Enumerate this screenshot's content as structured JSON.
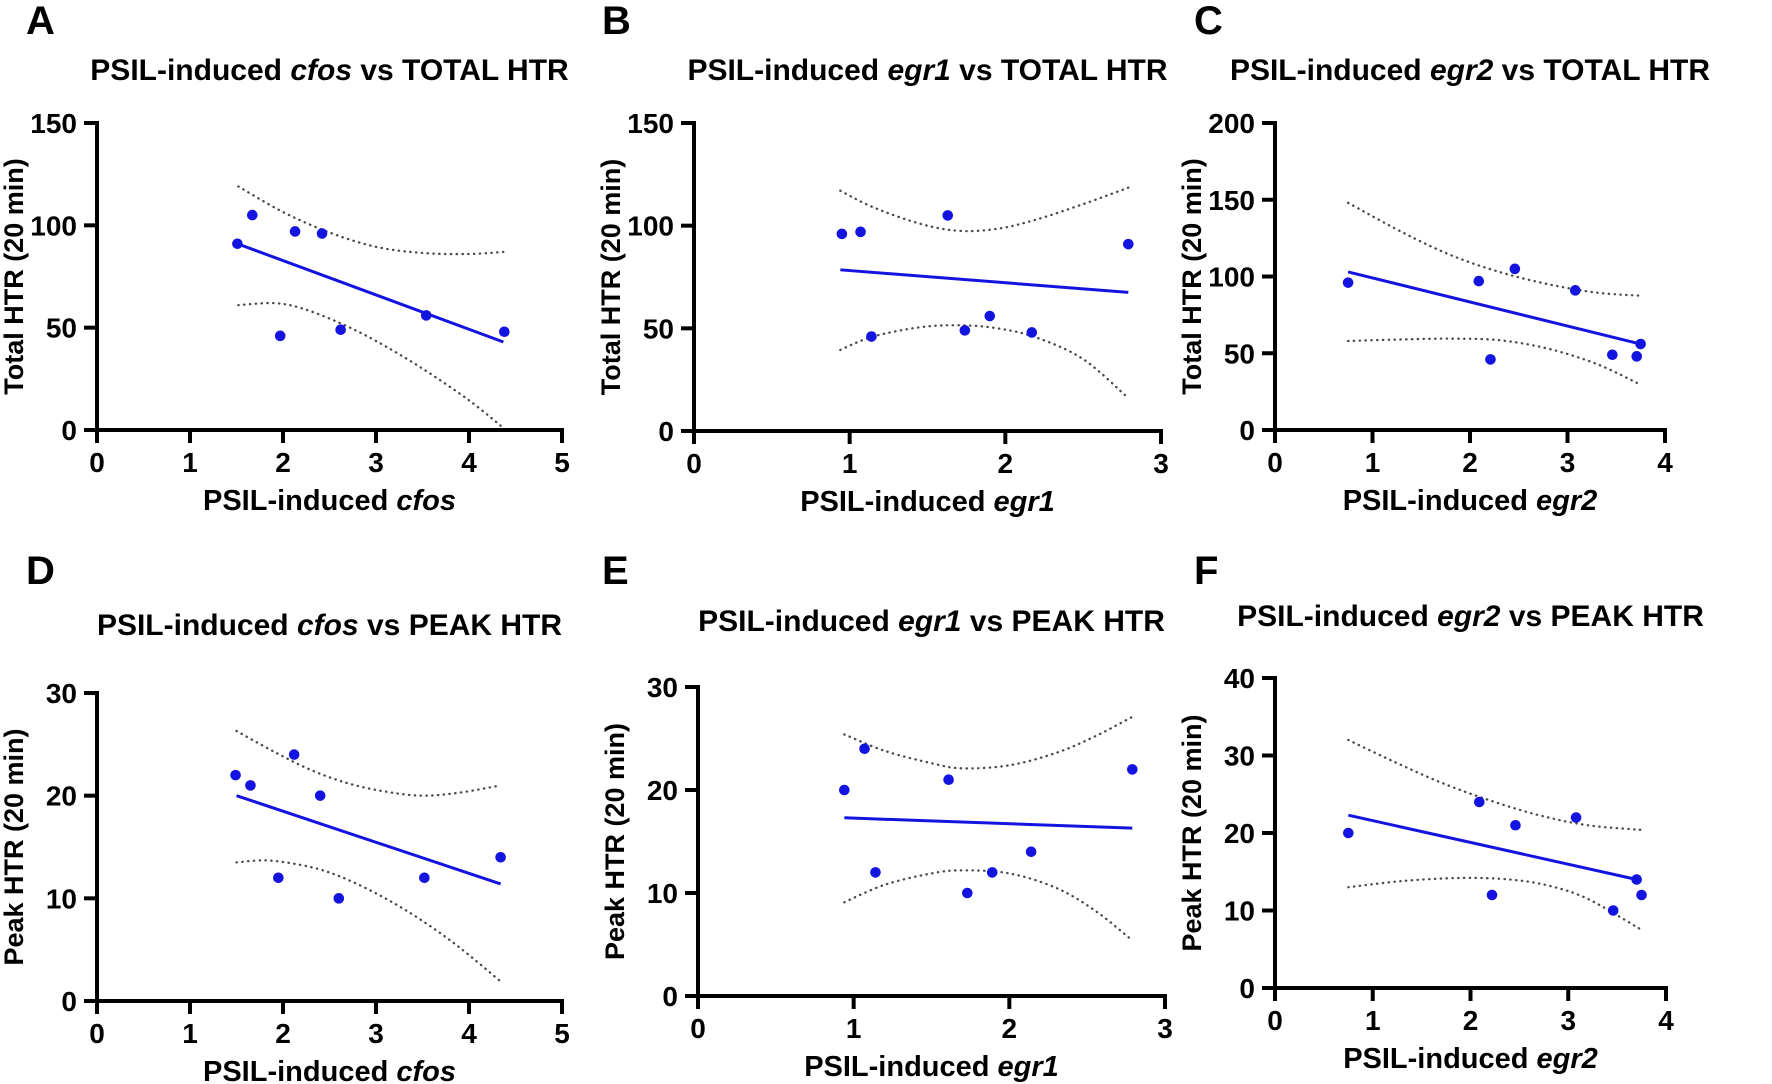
{
  "figure": {
    "background": "#ffffff",
    "point_color": "#1414e0",
    "line_color": "#1414e0",
    "ci_color": "#4a4a4a",
    "axis_color": "#000000",
    "text_color": "#000000"
  },
  "chart_data": [
    {
      "id": "A",
      "type": "scatter",
      "panel_label": "A",
      "title": {
        "prefix": "PSIL-induced ",
        "gene": "cfos",
        "suffix": " vs TOTAL HTR"
      },
      "xlabel": {
        "prefix": "PSIL-induced ",
        "gene": "cfos"
      },
      "ylabel": "Total HTR (20 min)",
      "xlim": [
        0,
        5
      ],
      "ylim": [
        0,
        150
      ],
      "xticks": [
        0,
        1,
        2,
        3,
        4,
        5
      ],
      "yticks": [
        0,
        50,
        100,
        150
      ],
      "grid": false,
      "points": [
        [
          1.67,
          105
        ],
        [
          2.13,
          97
        ],
        [
          2.42,
          96
        ],
        [
          1.51,
          91
        ],
        [
          1.97,
          46
        ],
        [
          2.62,
          49
        ],
        [
          3.54,
          56
        ],
        [
          4.38,
          48
        ]
      ],
      "regression": [
        [
          1.51,
          91
        ],
        [
          4.37,
          43
        ]
      ],
      "ci_upper": [
        [
          1.52,
          119
        ],
        [
          2.0,
          106.5
        ],
        [
          2.5,
          96.5
        ],
        [
          3.0,
          89.5
        ],
        [
          3.5,
          86.5
        ],
        [
          4.0,
          86
        ],
        [
          4.37,
          87
        ]
      ],
      "ci_lower": [
        [
          1.52,
          61
        ],
        [
          1.9,
          62
        ],
        [
          2.2,
          59.5
        ],
        [
          2.6,
          52.5
        ],
        [
          3.0,
          43.5
        ],
        [
          3.5,
          30
        ],
        [
          4.0,
          14.5
        ],
        [
          4.37,
          1
        ]
      ]
    },
    {
      "id": "B",
      "type": "scatter",
      "panel_label": "B",
      "title": {
        "prefix": "PSIL-induced ",
        "gene": "egr1",
        "suffix": " vs TOTAL HTR"
      },
      "xlabel": {
        "prefix": "PSIL-induced ",
        "gene": "egr1"
      },
      "ylabel": "Total HTR (20 min)",
      "xlim": [
        0,
        3
      ],
      "ylim": [
        0,
        150
      ],
      "xticks": [
        0,
        1,
        2,
        3
      ],
      "yticks": [
        0,
        50,
        100,
        150
      ],
      "grid": false,
      "points": [
        [
          0.95,
          96
        ],
        [
          1.07,
          97
        ],
        [
          1.63,
          105
        ],
        [
          2.79,
          91
        ],
        [
          1.14,
          46
        ],
        [
          1.74,
          49
        ],
        [
          1.9,
          56
        ],
        [
          2.17,
          48
        ]
      ],
      "regression": [
        [
          0.94,
          78.5
        ],
        [
          2.79,
          67.5
        ]
      ],
      "ci_upper": [
        [
          0.94,
          117
        ],
        [
          1.15,
          109
        ],
        [
          1.45,
          101
        ],
        [
          1.7,
          97.5
        ],
        [
          1.95,
          98.5
        ],
        [
          2.2,
          103
        ],
        [
          2.5,
          110.5
        ],
        [
          2.79,
          118.5
        ]
      ],
      "ci_lower": [
        [
          0.94,
          39.5
        ],
        [
          1.15,
          46
        ],
        [
          1.45,
          50.5
        ],
        [
          1.7,
          51.5
        ],
        [
          1.95,
          50
        ],
        [
          2.2,
          45.5
        ],
        [
          2.5,
          35
        ],
        [
          2.79,
          16
        ]
      ]
    },
    {
      "id": "C",
      "type": "scatter",
      "panel_label": "C",
      "title": {
        "prefix": "PSIL-induced ",
        "gene": "egr2",
        "suffix": " vs TOTAL HTR"
      },
      "xlabel": {
        "prefix": "PSIL-induced ",
        "gene": "egr2"
      },
      "ylabel": "Total HTR (20 min)",
      "xlim": [
        0,
        4
      ],
      "ylim": [
        0,
        200
      ],
      "xticks": [
        0,
        1,
        2,
        3,
        4
      ],
      "yticks": [
        0,
        50,
        100,
        150,
        200
      ],
      "grid": false,
      "points": [
        [
          0.75,
          96
        ],
        [
          2.09,
          97
        ],
        [
          2.46,
          105
        ],
        [
          3.08,
          91
        ],
        [
          2.21,
          46
        ],
        [
          3.46,
          49
        ],
        [
          3.71,
          48
        ],
        [
          3.75,
          56
        ]
      ],
      "regression": [
        [
          0.75,
          103
        ],
        [
          3.75,
          56
        ]
      ],
      "ci_upper": [
        [
          0.75,
          148
        ],
        [
          1.3,
          129
        ],
        [
          1.8,
          114
        ],
        [
          2.3,
          103
        ],
        [
          2.8,
          95
        ],
        [
          3.3,
          89.5
        ],
        [
          3.75,
          87.5
        ]
      ],
      "ci_lower": [
        [
          0.75,
          58
        ],
        [
          1.3,
          59
        ],
        [
          1.8,
          59.5
        ],
        [
          2.3,
          58.5
        ],
        [
          2.8,
          53
        ],
        [
          3.3,
          43
        ],
        [
          3.75,
          29.5
        ]
      ]
    },
    {
      "id": "D",
      "type": "scatter",
      "panel_label": "D",
      "title": {
        "prefix": "PSIL-induced ",
        "gene": "cfos",
        "suffix": " vs PEAK HTR"
      },
      "xlabel": {
        "prefix": "PSIL-induced ",
        "gene": "cfos"
      },
      "ylabel": "Peak HTR (20 min)",
      "xlim": [
        0,
        5
      ],
      "ylim": [
        0,
        30
      ],
      "xticks": [
        0,
        1,
        2,
        3,
        4,
        5
      ],
      "yticks": [
        0,
        10,
        20,
        30
      ],
      "grid": false,
      "points": [
        [
          1.49,
          22
        ],
        [
          1.65,
          21
        ],
        [
          2.12,
          24
        ],
        [
          2.4,
          20
        ],
        [
          1.95,
          12
        ],
        [
          2.6,
          10
        ],
        [
          3.52,
          12
        ],
        [
          4.34,
          14
        ]
      ],
      "regression": [
        [
          1.5,
          20
        ],
        [
          4.34,
          11.4
        ]
      ],
      "ci_upper": [
        [
          1.5,
          26.3
        ],
        [
          1.9,
          24.3
        ],
        [
          2.3,
          22.5
        ],
        [
          2.7,
          21.2
        ],
        [
          3.1,
          20.4
        ],
        [
          3.5,
          20.0
        ],
        [
          3.9,
          20.3
        ],
        [
          4.34,
          21.0
        ]
      ],
      "ci_lower": [
        [
          1.5,
          13.5
        ],
        [
          1.8,
          13.7
        ],
        [
          2.1,
          13.4
        ],
        [
          2.4,
          12.8
        ],
        [
          2.7,
          11.8
        ],
        [
          3.1,
          10
        ],
        [
          3.5,
          7.8
        ],
        [
          3.9,
          5.2
        ],
        [
          4.34,
          1.9
        ]
      ]
    },
    {
      "id": "E",
      "type": "scatter",
      "panel_label": "E",
      "title": {
        "prefix": "PSIL-induced ",
        "gene": "egr1",
        "suffix": " vs PEAK HTR"
      },
      "xlabel": {
        "prefix": "PSIL-induced ",
        "gene": "egr1"
      },
      "ylabel": "Peak HTR (20 min)",
      "xlim": [
        0,
        3
      ],
      "ylim": [
        0,
        30
      ],
      "xticks": [
        0,
        1,
        2,
        3
      ],
      "yticks": [
        0,
        10,
        20,
        30
      ],
      "grid": false,
      "points": [
        [
          0.94,
          20
        ],
        [
          1.07,
          24
        ],
        [
          1.61,
          21
        ],
        [
          2.79,
          22
        ],
        [
          1.14,
          12
        ],
        [
          1.73,
          10
        ],
        [
          1.89,
          12
        ],
        [
          2.14,
          14
        ]
      ],
      "regression": [
        [
          0.94,
          17.3
        ],
        [
          2.79,
          16.3
        ]
      ],
      "ci_upper": [
        [
          0.94,
          25.4
        ],
        [
          1.2,
          23.8
        ],
        [
          1.5,
          22.6
        ],
        [
          1.7,
          22.1
        ],
        [
          2.0,
          22.4
        ],
        [
          2.3,
          23.6
        ],
        [
          2.55,
          25.2
        ],
        [
          2.79,
          27.1
        ]
      ],
      "ci_lower": [
        [
          0.94,
          9.1
        ],
        [
          1.2,
          10.8
        ],
        [
          1.5,
          11.9
        ],
        [
          1.7,
          12.2
        ],
        [
          2.0,
          11.9
        ],
        [
          2.3,
          10.5
        ],
        [
          2.55,
          8.3
        ],
        [
          2.79,
          5.4
        ]
      ]
    },
    {
      "id": "F",
      "type": "scatter",
      "panel_label": "F",
      "title": {
        "prefix": "PSIL-induced ",
        "gene": "egr2",
        "suffix": " vs PEAK HTR"
      },
      "xlabel": {
        "prefix": "PSIL-induced ",
        "gene": "egr2"
      },
      "ylabel": "Peak HTR (20 min)",
      "xlim": [
        0,
        4
      ],
      "ylim": [
        0,
        40
      ],
      "xticks": [
        0,
        1,
        2,
        3,
        4
      ],
      "yticks": [
        0,
        10,
        20,
        30,
        40
      ],
      "grid": false,
      "points": [
        [
          0.75,
          20
        ],
        [
          2.09,
          24
        ],
        [
          2.46,
          21
        ],
        [
          3.08,
          22
        ],
        [
          2.22,
          12
        ],
        [
          3.46,
          10
        ],
        [
          3.7,
          14
        ],
        [
          3.75,
          12
        ]
      ],
      "regression": [
        [
          0.75,
          22.3
        ],
        [
          3.7,
          14
        ]
      ],
      "ci_upper": [
        [
          0.75,
          32
        ],
        [
          1.2,
          29.3
        ],
        [
          1.7,
          26.5
        ],
        [
          2.2,
          24.2
        ],
        [
          2.7,
          22.3
        ],
        [
          3.2,
          21
        ],
        [
          3.75,
          20.4
        ]
      ],
      "ci_lower": [
        [
          0.75,
          13
        ],
        [
          1.3,
          13.8
        ],
        [
          1.9,
          14.2
        ],
        [
          2.4,
          14
        ],
        [
          2.8,
          13.2
        ],
        [
          3.2,
          11.5
        ],
        [
          3.75,
          7.5
        ]
      ]
    }
  ]
}
